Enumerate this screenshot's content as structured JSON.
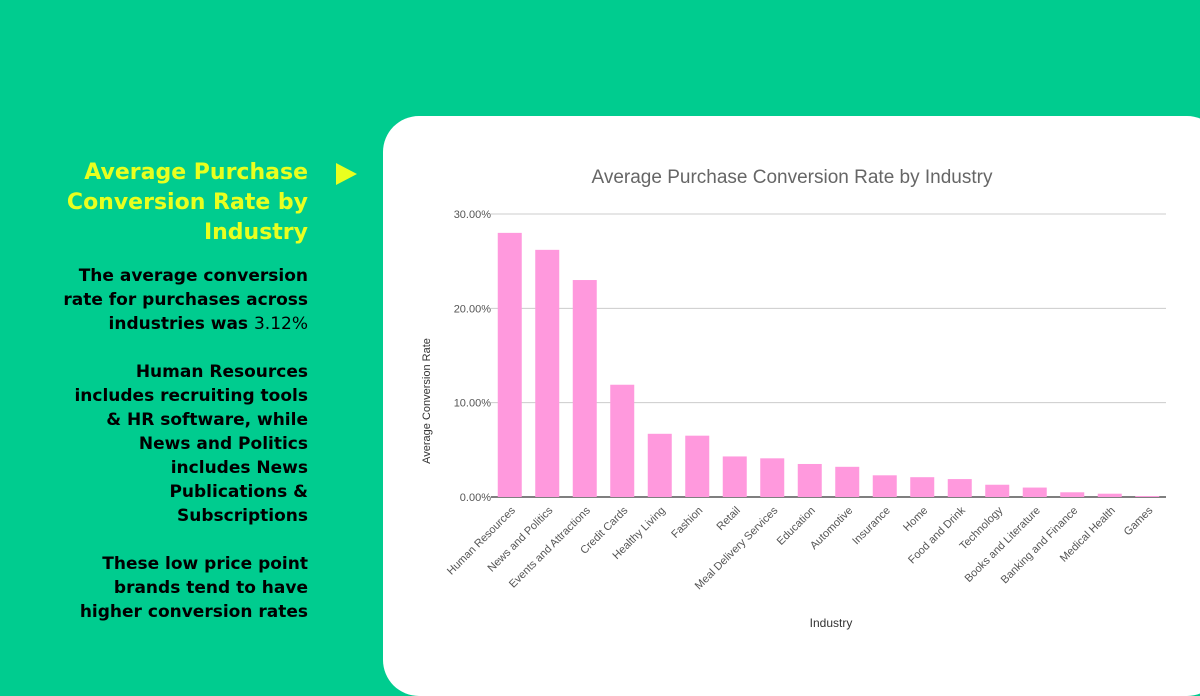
{
  "left_panel": {
    "title": "Average Purchase\nConversion Rate by\nIndustry",
    "para1_text": "The average conversion\nrate for purchases across\nindustries was ",
    "para1_value": "3.12%",
    "para2": "Human Resources\nincludes recruiting tools\n& HR software, while\nNews and Politics\nincludes News\nPublications &\nSubscriptions",
    "para3": "These low price point\nbrands tend to have\nhigher conversion rates"
  },
  "colors": {
    "background": "#00cc8f",
    "accent": "#e9ff1f",
    "bar": "#ff99dd",
    "card": "#ffffff"
  },
  "chart_data": {
    "type": "bar",
    "title": "Average Purchase Conversion Rate by Industry",
    "xlabel": "Industry",
    "ylabel": "Average Conversion Rate",
    "ylim": [
      0,
      30
    ],
    "yticks": [
      "0.00%",
      "10.00%",
      "20.00%",
      "30.00%"
    ],
    "ytick_values": [
      0,
      10,
      20,
      30
    ],
    "grid": true,
    "categories": [
      "Human Resources",
      "News and Politics",
      "Events and Attractions",
      "Credit Cards",
      "Healthy Living",
      "Fashion",
      "Retail",
      "Meal Delivery Services",
      "Education",
      "Automotive",
      "Insurance",
      "Home",
      "Food and Drink",
      "Technology",
      "Books and Literature",
      "Banking and Finance",
      "Medical Health",
      "Games"
    ],
    "values": [
      28.0,
      26.2,
      23.0,
      11.9,
      6.7,
      6.5,
      4.3,
      4.1,
      3.5,
      3.2,
      2.3,
      2.1,
      1.9,
      1.3,
      1.0,
      0.5,
      0.35,
      0.1
    ]
  }
}
